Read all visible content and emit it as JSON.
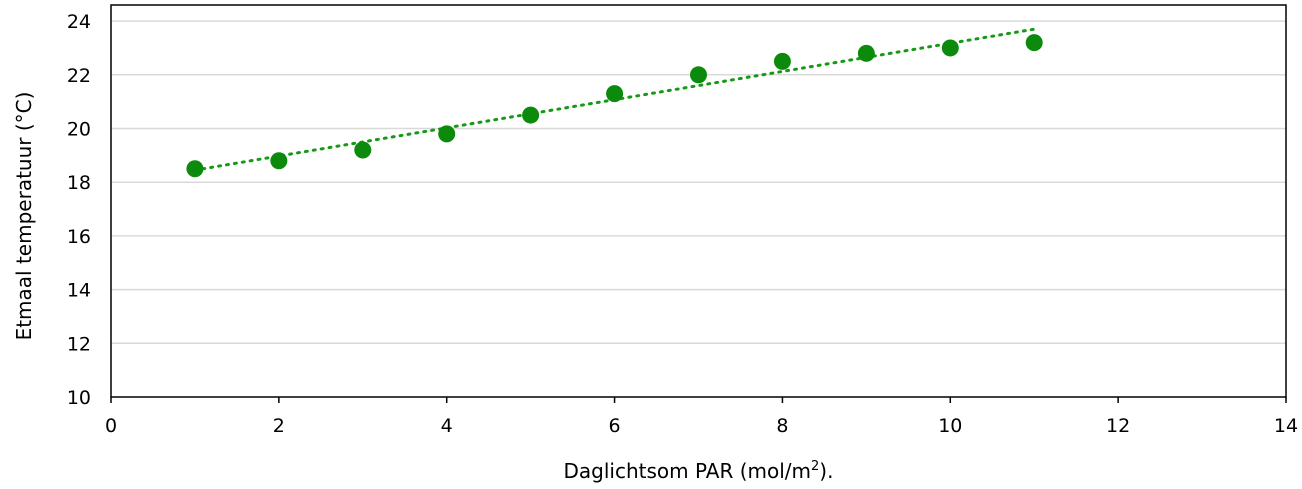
{
  "chart_data": {
    "type": "scatter",
    "xlabel_main": "Daglichtsom PAR (mol/m",
    "xlabel_sup": "2",
    "xlabel_end": ").",
    "ylabel": "Etmaal temperatuur (°C)",
    "xlim": [
      0,
      14
    ],
    "ylim": [
      10,
      24.6
    ],
    "xticks": [
      0,
      2,
      4,
      6,
      8,
      10,
      12,
      14
    ],
    "yticks": [
      10,
      12,
      14,
      16,
      18,
      20,
      22,
      24
    ],
    "grid": true,
    "points": [
      {
        "x": 1,
        "y": 18.5
      },
      {
        "x": 2,
        "y": 18.8
      },
      {
        "x": 3,
        "y": 19.2
      },
      {
        "x": 4,
        "y": 19.8
      },
      {
        "x": 5,
        "y": 20.5
      },
      {
        "x": 6,
        "y": 21.3
      },
      {
        "x": 7,
        "y": 22.0
      },
      {
        "x": 8,
        "y": 22.5
      },
      {
        "x": 9,
        "y": 22.8
      },
      {
        "x": 10,
        "y": 23.0
      },
      {
        "x": 11,
        "y": 23.2
      }
    ],
    "trendline": {
      "style": "dotted",
      "x": [
        1,
        11
      ],
      "y": [
        18.45,
        23.7
      ]
    },
    "marker_color": "#0b8a0b",
    "trend_color": "#169a16"
  }
}
